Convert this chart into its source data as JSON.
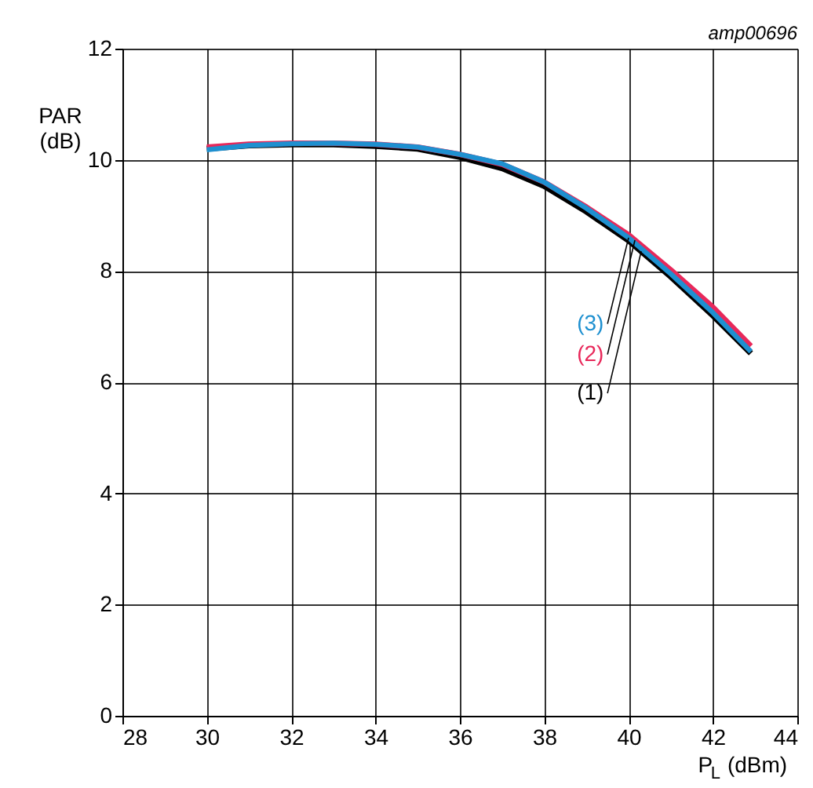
{
  "chart_data": {
    "type": "line",
    "x": [
      30,
      31,
      32,
      33,
      34,
      35,
      36,
      37,
      38,
      39,
      40,
      41,
      42,
      42.9
    ],
    "series": [
      {
        "name": "(1)",
        "color": "#000000",
        "values": [
          10.2,
          10.26,
          10.28,
          10.28,
          10.25,
          10.2,
          10.05,
          9.85,
          9.53,
          9.07,
          8.55,
          7.9,
          7.2,
          6.52
        ]
      },
      {
        "name": "(2)",
        "color": "#e8285a",
        "values": [
          10.23,
          10.28,
          10.3,
          10.3,
          10.28,
          10.23,
          10.1,
          9.92,
          9.6,
          9.15,
          8.65,
          8.02,
          7.35,
          6.65
        ]
      },
      {
        "name": "(3)",
        "color": "#1e90d0",
        "values": [
          10.18,
          10.26,
          10.29,
          10.3,
          10.28,
          10.23,
          10.1,
          9.93,
          9.6,
          9.13,
          8.6,
          7.95,
          7.25,
          6.55
        ]
      }
    ],
    "xlabel": "P$_{L}$ (dBm)",
    "ylabel": "PAR\n(dB)",
    "xlim": [
      28,
      44
    ],
    "xticks": [
      28,
      30,
      32,
      34,
      36,
      38,
      40,
      42,
      44
    ],
    "ylim": [
      0,
      12
    ],
    "yticks": [
      0,
      2,
      4,
      6,
      8,
      10,
      12
    ],
    "grid": true,
    "legend": false,
    "marker": "none",
    "line_style": "solid",
    "annotations": [
      "amp00696"
    ]
  }
}
